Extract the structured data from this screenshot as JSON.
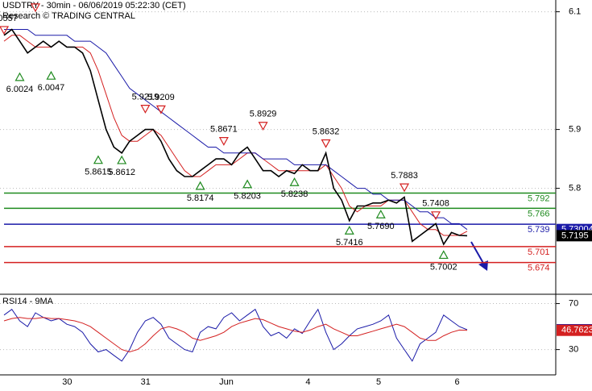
{
  "chart_data": {
    "type": "line",
    "title": "USDTRY - 30min - 06/06/2019 05:22:30 (CET)",
    "subtitle": "Research © TRADING CENTRAL",
    "categories": [
      null,
      null,
      null,
      null,
      null,
      null,
      null,
      "30",
      null,
      null,
      null,
      null,
      null,
      null,
      null,
      null,
      null,
      "31",
      null,
      null,
      null,
      null,
      null,
      null,
      null,
      null,
      null,
      "Jun",
      null,
      null,
      null,
      null,
      null,
      null,
      null,
      null,
      null,
      null,
      "4",
      null,
      null,
      null,
      null,
      null,
      null,
      null,
      null,
      "5",
      null,
      null,
      null,
      null,
      null,
      null,
      null,
      null,
      null,
      "6",
      null,
      null
    ],
    "ylim": [
      5.62,
      6.12
    ],
    "yticks": [
      5.8,
      5.9,
      6.1
    ],
    "grid": true,
    "series": [
      {
        "name": "USDTRY",
        "color": "#000000",
        "values": [
          6.06,
          6.07,
          6.05,
          6.03,
          6.04,
          6.05,
          6.04,
          6.05,
          6.04,
          6.04,
          6.03,
          6.0,
          5.95,
          5.9,
          5.87,
          5.86,
          5.88,
          5.89,
          5.9,
          5.9,
          5.88,
          5.85,
          5.83,
          5.82,
          5.82,
          5.83,
          5.84,
          5.85,
          5.85,
          5.84,
          5.86,
          5.87,
          5.85,
          5.83,
          5.83,
          5.82,
          5.83,
          5.825,
          5.84,
          5.83,
          5.83,
          5.86,
          5.8,
          5.78,
          5.745,
          5.77,
          5.77,
          5.775,
          5.775,
          5.78,
          5.775,
          5.785,
          5.71,
          5.72,
          5.73,
          5.74,
          5.705,
          5.725,
          5.72,
          5.7195
        ]
      },
      {
        "name": "MA slow",
        "color": "#1a1aa8",
        "values": [
          6.07,
          6.07,
          6.07,
          6.07,
          6.06,
          6.06,
          6.06,
          6.06,
          6.06,
          6.05,
          6.05,
          6.05,
          6.04,
          6.03,
          6.01,
          5.99,
          5.97,
          5.96,
          5.95,
          5.94,
          5.93,
          5.92,
          5.91,
          5.9,
          5.89,
          5.88,
          5.87,
          5.87,
          5.86,
          5.86,
          5.86,
          5.86,
          5.86,
          5.85,
          5.85,
          5.85,
          5.85,
          5.84,
          5.84,
          5.84,
          5.84,
          5.84,
          5.83,
          5.82,
          5.81,
          5.8,
          5.8,
          5.79,
          5.79,
          5.78,
          5.78,
          5.78,
          5.77,
          5.76,
          5.76,
          5.75,
          5.75,
          5.74,
          5.74,
          5.73004
        ]
      },
      {
        "name": "MA fast",
        "color": "#d42020",
        "values": [
          6.05,
          6.06,
          6.06,
          6.05,
          6.04,
          6.04,
          6.04,
          6.05,
          6.04,
          6.04,
          6.04,
          6.03,
          6.0,
          5.96,
          5.92,
          5.89,
          5.88,
          5.88,
          5.89,
          5.9,
          5.89,
          5.87,
          5.85,
          5.83,
          5.82,
          5.82,
          5.83,
          5.84,
          5.84,
          5.84,
          5.85,
          5.86,
          5.86,
          5.85,
          5.84,
          5.83,
          5.83,
          5.83,
          5.83,
          5.83,
          5.83,
          5.84,
          5.82,
          5.8,
          5.77,
          5.76,
          5.77,
          5.77,
          5.77,
          5.78,
          5.78,
          5.78,
          5.76,
          5.74,
          5.73,
          5.73,
          5.72,
          5.72,
          5.72,
          5.7271
        ]
      }
    ],
    "levels": [
      {
        "value": 5.792,
        "color": "#1f8a1f"
      },
      {
        "value": 5.766,
        "color": "#1f8a1f"
      },
      {
        "value": 5.739,
        "color": "#1a1aa8"
      },
      {
        "value": 5.701,
        "color": "#d42020"
      },
      {
        "value": 5.674,
        "color": "#d42020"
      }
    ],
    "pivots": [
      {
        "index": 0,
        "value": 6.0557,
        "dir": "down"
      },
      {
        "index": 4,
        "value": 6.0941,
        "dir": "down"
      },
      {
        "index": 2,
        "value": 6.0024,
        "dir": "up"
      },
      {
        "index": 6,
        "value": 6.0047,
        "dir": "up"
      },
      {
        "index": 12,
        "value": 5.8615,
        "dir": "up"
      },
      {
        "index": 15,
        "value": 5.8612,
        "dir": "up"
      },
      {
        "index": 18,
        "value": 5.9219,
        "dir": "down"
      },
      {
        "index": 20,
        "value": 5.9209,
        "dir": "down"
      },
      {
        "index": 25,
        "value": 5.8174,
        "dir": "up"
      },
      {
        "index": 28,
        "value": 5.8671,
        "dir": "down"
      },
      {
        "index": 31,
        "value": 5.8203,
        "dir": "up"
      },
      {
        "index": 33,
        "value": 5.8929,
        "dir": "down"
      },
      {
        "index": 37,
        "value": 5.8238,
        "dir": "up"
      },
      {
        "index": 41,
        "value": 5.8632,
        "dir": "down"
      },
      {
        "index": 44,
        "value": 5.7416,
        "dir": "up"
      },
      {
        "index": 48,
        "value": 5.769,
        "label": "5.7690",
        "dir": "up"
      },
      {
        "index": 51,
        "value": 5.7883,
        "dir": "down"
      },
      {
        "index": 55,
        "value": 5.7408,
        "dir": "down"
      },
      {
        "index": 56,
        "value": 5.7002,
        "dir": "up"
      }
    ],
    "rsi": {
      "title": "RSI14 - 9MA",
      "ylim": [
        8,
        76
      ],
      "yticks": [
        70,
        30
      ],
      "series": [
        {
          "name": "RSI14",
          "color": "#1a1aa8",
          "values": [
            60,
            65,
            55,
            50,
            62,
            58,
            55,
            57,
            52,
            50,
            45,
            35,
            28,
            30,
            25,
            20,
            30,
            45,
            55,
            58,
            52,
            40,
            35,
            30,
            28,
            45,
            50,
            48,
            58,
            62,
            55,
            60,
            65,
            50,
            42,
            45,
            40,
            48,
            44,
            55,
            65,
            45,
            30,
            35,
            42,
            48,
            50,
            52,
            55,
            60,
            40,
            30,
            20,
            35,
            40,
            45,
            60,
            55,
            50,
            47.2593
          ]
        },
        {
          "name": "9MA",
          "color": "#d42020",
          "values": [
            55,
            57,
            58,
            57,
            57,
            58,
            57,
            57,
            56,
            55,
            53,
            50,
            45,
            40,
            35,
            30,
            28,
            30,
            35,
            42,
            48,
            50,
            48,
            45,
            40,
            38,
            40,
            42,
            45,
            50,
            53,
            55,
            57,
            56,
            53,
            50,
            48,
            46,
            45,
            47,
            50,
            52,
            48,
            45,
            42,
            42,
            44,
            46,
            48,
            50,
            52,
            50,
            45,
            40,
            38,
            38,
            42,
            45,
            47,
            46.7623
          ]
        }
      ]
    }
  }
}
